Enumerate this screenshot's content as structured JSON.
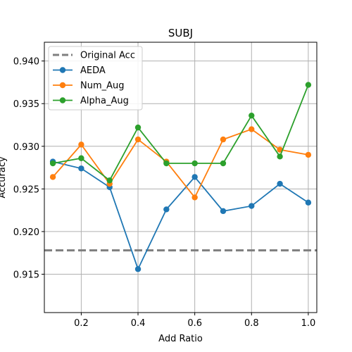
{
  "chart_data": {
    "type": "line",
    "title": "SUBJ",
    "xlabel": "Add Ratio",
    "ylabel": "Accuracy",
    "x": [
      0.1,
      0.2,
      0.3,
      0.4,
      0.5,
      0.6,
      0.7,
      0.8,
      0.9,
      1.0
    ],
    "xlim": [
      0.07,
      1.03
    ],
    "ylim": [
      0.9105,
      0.9422
    ],
    "xticks": [
      "0.2",
      "0.4",
      "0.6",
      "0.8",
      "1.0"
    ],
    "yticks": [
      "0.915",
      "0.920",
      "0.925",
      "0.930",
      "0.935",
      "0.940"
    ],
    "grid": true,
    "legend_placement": "top-left",
    "reference_line": {
      "name": "Original Acc",
      "value": 0.9178,
      "color": "#7f7f7f",
      "style": "dashed"
    },
    "series": [
      {
        "name": "AEDA",
        "color": "#1f77b4",
        "values": [
          0.9282,
          0.9274,
          0.9252,
          0.9156,
          0.9226,
          0.9264,
          0.9224,
          0.923,
          0.9256,
          0.9234
        ]
      },
      {
        "name": "Num_Aug",
        "color": "#ff7f0e",
        "values": [
          0.9264,
          0.9302,
          0.9256,
          0.9308,
          0.9282,
          0.924,
          0.9308,
          0.932,
          0.9296,
          0.929
        ]
      },
      {
        "name": "Alpha_Aug",
        "color": "#2ca02c",
        "values": [
          0.928,
          0.9286,
          0.926,
          0.9322,
          0.928,
          0.928,
          0.928,
          0.9336,
          0.9288,
          0.9372
        ]
      }
    ]
  }
}
